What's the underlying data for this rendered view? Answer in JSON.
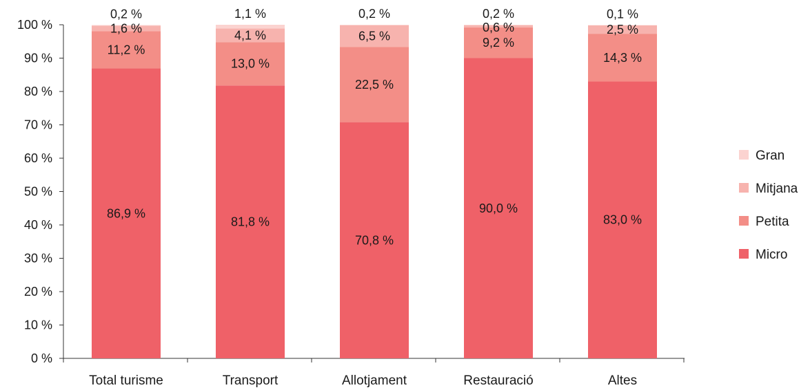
{
  "chart_data": {
    "type": "bar",
    "stacked": true,
    "title": "",
    "xlabel": "",
    "ylabel": "",
    "ylim": [
      0,
      100
    ],
    "ytick_step": 10,
    "ytick_suffix": " %",
    "grid": false,
    "legend_position": "right",
    "categories": [
      "Total turisme",
      "Transport",
      "Allotjament",
      "Restauració",
      "Altes"
    ],
    "series": [
      {
        "name": "Micro",
        "color": "#ef6168",
        "values": [
          86.9,
          81.8,
          70.8,
          90.0,
          83.0
        ],
        "labels": [
          "86,9 %",
          "81,8 %",
          "70,8 %",
          "90,0 %",
          "83,0 %"
        ]
      },
      {
        "name": "Petita",
        "color": "#f38e87",
        "values": [
          11.2,
          13.0,
          22.5,
          9.2,
          14.3
        ],
        "labels": [
          "11,2 %",
          "13,0 %",
          "22,5 %",
          "9,2 %",
          "14,3 %"
        ]
      },
      {
        "name": "Mitjana",
        "color": "#f7b3ae",
        "values": [
          1.6,
          4.1,
          6.5,
          0.6,
          2.5
        ],
        "labels": [
          "1,6 %",
          "4,1 %",
          "6,5 %",
          "0,6 %",
          "2,5 %"
        ]
      },
      {
        "name": "Gran",
        "color": "#fbd3d0",
        "values": [
          0.2,
          1.1,
          0.2,
          0.2,
          0.1
        ],
        "labels": [
          "0,2 %",
          "1,1 %",
          "0,2 %",
          "0,2 %",
          "0,1 %"
        ]
      }
    ]
  }
}
